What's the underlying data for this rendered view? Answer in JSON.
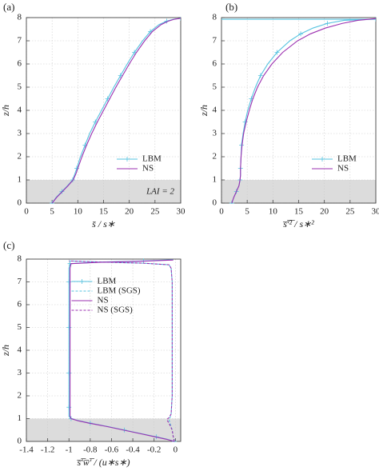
{
  "chart_data": [
    {
      "type": "line",
      "panel_label": "(a)",
      "xlabel": "s̄ / s∗",
      "ylabel": "z/h",
      "xlim": [
        0,
        30
      ],
      "ylim": [
        0,
        8
      ],
      "xticks": [
        0,
        5,
        10,
        15,
        20,
        25,
        30
      ],
      "yticks": [
        0,
        1,
        2,
        3,
        4,
        5,
        6,
        7,
        8
      ],
      "grid": true,
      "legend": "lower right",
      "shade_ylim": [
        0,
        1
      ],
      "annotation": "LAI = 2",
      "series": [
        {
          "name": "LBM",
          "color": "#56c3e0",
          "dashed": false,
          "markers": true,
          "x": [
            5,
            5.8,
            6.9,
            8,
            9,
            9.4,
            9.8,
            10.5,
            11.4,
            12.3,
            13.4,
            14.6,
            15.8,
            17,
            18.3,
            19.6,
            21,
            22.6,
            24.1,
            25.8,
            27.3,
            28.6,
            30
          ],
          "y": [
            0,
            0.25,
            0.5,
            0.75,
            1,
            1.25,
            1.5,
            2,
            2.5,
            3,
            3.5,
            4,
            4.5,
            5,
            5.5,
            6,
            6.5,
            7,
            7.4,
            7.7,
            7.85,
            7.93,
            7.97
          ]
        },
        {
          "name": "NS",
          "color": "#9b30b0",
          "dashed": false,
          "markers": false,
          "x": [
            5,
            5.9,
            7,
            8.1,
            9.1,
            9.6,
            10,
            10.8,
            11.7,
            12.7,
            13.8,
            15,
            16.2,
            17.4,
            18.7,
            20,
            21.4,
            23,
            24.5,
            26.2,
            27.6,
            28.8,
            30
          ],
          "y": [
            0,
            0.25,
            0.5,
            0.75,
            1,
            1.25,
            1.5,
            2,
            2.5,
            3,
            3.5,
            4,
            4.5,
            5,
            5.5,
            6,
            6.5,
            7,
            7.4,
            7.7,
            7.85,
            7.93,
            7.97
          ]
        }
      ]
    },
    {
      "type": "line",
      "panel_label": "(b)",
      "xlabel": "s̅′̅²̅ / s∗²",
      "ylabel": "z/h",
      "xlim": [
        0,
        30
      ],
      "ylim": [
        0,
        8
      ],
      "xticks": [
        0,
        5,
        10,
        15,
        20,
        25,
        30
      ],
      "yticks": [
        0,
        1,
        2,
        3,
        4,
        5,
        6,
        7,
        8
      ],
      "grid": true,
      "legend": "lower right",
      "shade_ylim": [
        0,
        1
      ],
      "series": [
        {
          "name": "LBM",
          "color": "#56c3e0",
          "dashed": false,
          "markers": true,
          "x": [
            2,
            2.4,
            2.9,
            3.4,
            3.6,
            3.7,
            3.7,
            3.8,
            3.9,
            4.2,
            4.6,
            5.1,
            5.8,
            6.6,
            7.6,
            9,
            10.8,
            13.3,
            15.4,
            17.8,
            20.6,
            23.8,
            30,
            0
          ],
          "y": [
            0,
            0.25,
            0.5,
            0.75,
            1,
            1.2,
            1.5,
            2,
            2.5,
            3,
            3.5,
            4,
            4.5,
            5,
            5.5,
            6,
            6.5,
            7,
            7.3,
            7.55,
            7.75,
            7.88,
            7.93,
            7.93
          ]
        },
        {
          "name": "NS",
          "color": "#9b30b0",
          "dashed": false,
          "markers": false,
          "x": [
            2,
            2.4,
            2.9,
            3.4,
            3.6,
            3.7,
            3.7,
            3.8,
            4,
            4.3,
            4.8,
            5.4,
            6.1,
            7,
            8.2,
            9.8,
            11.9,
            14.8,
            17.3,
            20.2,
            23.5,
            26.5,
            30
          ],
          "y": [
            0,
            0.25,
            0.5,
            0.75,
            1,
            1.2,
            1.5,
            2,
            2.5,
            3,
            3.5,
            4,
            4.5,
            5,
            5.5,
            6,
            6.5,
            7,
            7.3,
            7.55,
            7.75,
            7.88,
            7.96
          ]
        }
      ]
    },
    {
      "type": "line",
      "panel_label": "(c)",
      "xlabel": "s̅′̅w̅′̅ / (u∗s∗)",
      "ylabel": "z/h",
      "xlim": [
        -1.4,
        0.05
      ],
      "ylim": [
        0,
        8
      ],
      "xticks": [
        -1.4,
        -1.2,
        -1,
        -0.8,
        -0.6,
        -0.4,
        -0.2,
        0
      ],
      "yticks": [
        0,
        1,
        2,
        3,
        4,
        5,
        6,
        7,
        8
      ],
      "grid": true,
      "legend": "upper center",
      "shade_ylim": [
        0,
        1
      ],
      "series": [
        {
          "name": "LBM",
          "color": "#56c3e0",
          "dashed": false,
          "markers": true,
          "x": [
            -0.01,
            -0.08,
            -0.18,
            -0.33,
            -0.48,
            -0.63,
            -0.8,
            -0.9,
            -0.98,
            -1,
            -1,
            -1,
            -1,
            -1,
            -1,
            -1,
            -1,
            -1,
            -0.99,
            -0.7,
            -0.3,
            -0.02
          ],
          "y": [
            0,
            0.1,
            0.2,
            0.35,
            0.5,
            0.65,
            0.8,
            0.9,
            1,
            1.1,
            1.5,
            2,
            3,
            4,
            5,
            6,
            7,
            7.6,
            7.8,
            7.87,
            7.92,
            7.97
          ]
        },
        {
          "name": "LBM (SGS)",
          "color": "#56c3e0",
          "dashed": true,
          "markers": false,
          "x": [
            -0.01,
            -0.02,
            -0.03,
            -0.05,
            -0.06,
            -0.05,
            -0.04,
            -0.03,
            -0.03,
            -0.03,
            -0.03,
            -0.03,
            -0.03,
            -0.04,
            -0.06,
            -0.3,
            -0.7,
            -1
          ],
          "y": [
            0,
            0.2,
            0.5,
            0.8,
            0.95,
            1.05,
            1.2,
            2,
            3,
            4,
            5,
            6,
            7,
            7.6,
            7.75,
            7.82,
            7.87,
            7.92
          ]
        },
        {
          "name": "NS",
          "color": "#9b30b0",
          "dashed": false,
          "markers": false,
          "x": [
            -0.01,
            -0.09,
            -0.19,
            -0.34,
            -0.49,
            -0.64,
            -0.81,
            -0.91,
            -0.98,
            -0.99,
            -0.99,
            -0.99,
            -0.99,
            -0.99,
            -0.99,
            -0.99,
            -0.99,
            -0.99,
            -0.98,
            -0.7,
            -0.3,
            -0.02
          ],
          "y": [
            0,
            0.1,
            0.2,
            0.35,
            0.5,
            0.65,
            0.8,
            0.9,
            1,
            1.1,
            1.5,
            2,
            3,
            4,
            5,
            6,
            7,
            7.6,
            7.8,
            7.86,
            7.91,
            7.96
          ]
        },
        {
          "name": "NS (SGS)",
          "color": "#9b30b0",
          "dashed": true,
          "markers": false,
          "x": [
            -0.01,
            -0.02,
            -0.03,
            -0.06,
            -0.08,
            -0.06,
            -0.04,
            -0.03,
            -0.03,
            -0.03,
            -0.03,
            -0.03,
            -0.03,
            -0.04,
            -0.06,
            -0.3,
            -0.7,
            -1
          ],
          "y": [
            0,
            0.2,
            0.5,
            0.8,
            0.95,
            1.05,
            1.2,
            2,
            3,
            4,
            5,
            6,
            7,
            7.6,
            7.75,
            7.82,
            7.87,
            7.92
          ]
        }
      ]
    }
  ]
}
